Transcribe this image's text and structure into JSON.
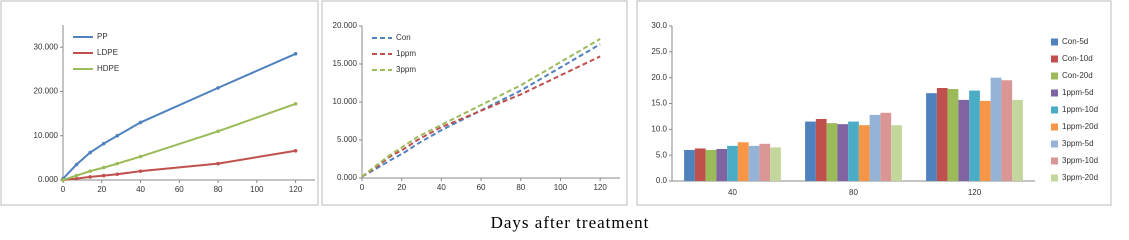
{
  "chart_data": [
    {
      "type": "line",
      "x": [
        0,
        7,
        14,
        21,
        28,
        40,
        80,
        120
      ],
      "xlim": [
        0,
        130
      ],
      "xticks": [
        0,
        20,
        40,
        60,
        80,
        100,
        120
      ],
      "ylim": [
        0,
        35
      ],
      "yticks": [
        {
          "value": 0,
          "label": "0.000"
        },
        {
          "value": 10,
          "label": "10.000"
        },
        {
          "value": 20,
          "label": "20.000"
        },
        {
          "value": 30,
          "label": "30.000"
        }
      ],
      "legend": "upper-left",
      "line_style": "solid",
      "series": [
        {
          "name": "PP",
          "color": "#4f81bd",
          "values": [
            0.3,
            3.5,
            6.2,
            8.2,
            10.0,
            13.0,
            20.8,
            28.5
          ]
        },
        {
          "name": "LDPE",
          "color": "#c0504d",
          "values": [
            0,
            0.3,
            0.7,
            1.0,
            1.3,
            2.0,
            3.7,
            6.6
          ]
        },
        {
          "name": "HDPE",
          "color": "#9bbb59",
          "values": [
            0,
            1.0,
            2.0,
            2.8,
            3.7,
            5.3,
            11.0,
            17.2
          ]
        }
      ]
    },
    {
      "type": "line",
      "x": [
        0,
        7,
        14,
        21,
        28,
        40,
        80,
        120
      ],
      "xlim": [
        0,
        130
      ],
      "xticks": [
        0,
        20,
        40,
        60,
        80,
        100,
        120
      ],
      "ylim": [
        0,
        20
      ],
      "yticks": [
        {
          "value": 0,
          "label": "0.000"
        },
        {
          "value": 5,
          "label": "5.000"
        },
        {
          "value": 10,
          "label": "10.000"
        },
        {
          "value": 15,
          "label": "15.000"
        },
        {
          "value": 20,
          "label": "20.000"
        }
      ],
      "legend": "upper-left",
      "line_style": "dashed",
      "series": [
        {
          "name": "Con",
          "color": "#4f81bd",
          "values": [
            0.2,
            1.2,
            2.3,
            3.3,
            4.5,
            6.3,
            11.5,
            17.6
          ]
        },
        {
          "name": "1ppm",
          "color": "#c0504d",
          "values": [
            0.2,
            1.4,
            2.8,
            3.8,
            5.0,
            6.7,
            11.0,
            16.0
          ]
        },
        {
          "name": "3ppm",
          "color": "#9bbb59",
          "values": [
            0.2,
            1.6,
            3.0,
            4.2,
            5.4,
            7.0,
            12.2,
            18.3
          ]
        }
      ]
    },
    {
      "type": "bar",
      "categories": [
        "40",
        "80",
        "120"
      ],
      "ylim": [
        0,
        30
      ],
      "yticks": [
        {
          "value": 0,
          "label": "0.0"
        },
        {
          "value": 5,
          "label": "5.0"
        },
        {
          "value": 10,
          "label": "10.0"
        },
        {
          "value": 15,
          "label": "15.0"
        },
        {
          "value": 20,
          "label": "20.0"
        },
        {
          "value": 25,
          "label": "25.0"
        },
        {
          "value": 30,
          "label": "30.0"
        }
      ],
      "legend": "right",
      "series": [
        {
          "name": "Con-5d",
          "color": "#4f81bd",
          "values": [
            6.0,
            11.5,
            17.0
          ]
        },
        {
          "name": "Con-10d",
          "color": "#c0504d",
          "values": [
            6.3,
            12.0,
            18.0
          ]
        },
        {
          "name": "Con-20d",
          "color": "#9bbb59",
          "values": [
            6.0,
            11.2,
            17.8
          ]
        },
        {
          "name": "1ppm-5d",
          "color": "#8064a2",
          "values": [
            6.2,
            11.0,
            15.7
          ]
        },
        {
          "name": "1ppm-10d",
          "color": "#4bacc6",
          "values": [
            6.8,
            11.5,
            17.5
          ]
        },
        {
          "name": "1ppm-20d",
          "color": "#f79646",
          "values": [
            7.5,
            10.8,
            15.5
          ]
        },
        {
          "name": "3ppm-5d",
          "color": "#95b3d7",
          "values": [
            6.8,
            12.8,
            20.0
          ]
        },
        {
          "name": "3ppm-10d",
          "color": "#d99694",
          "values": [
            7.2,
            13.2,
            19.5
          ]
        },
        {
          "name": "3ppm-20d",
          "color": "#c3d69b",
          "values": [
            6.5,
            10.8,
            15.7
          ]
        }
      ]
    }
  ],
  "caption": "Days after treatment"
}
